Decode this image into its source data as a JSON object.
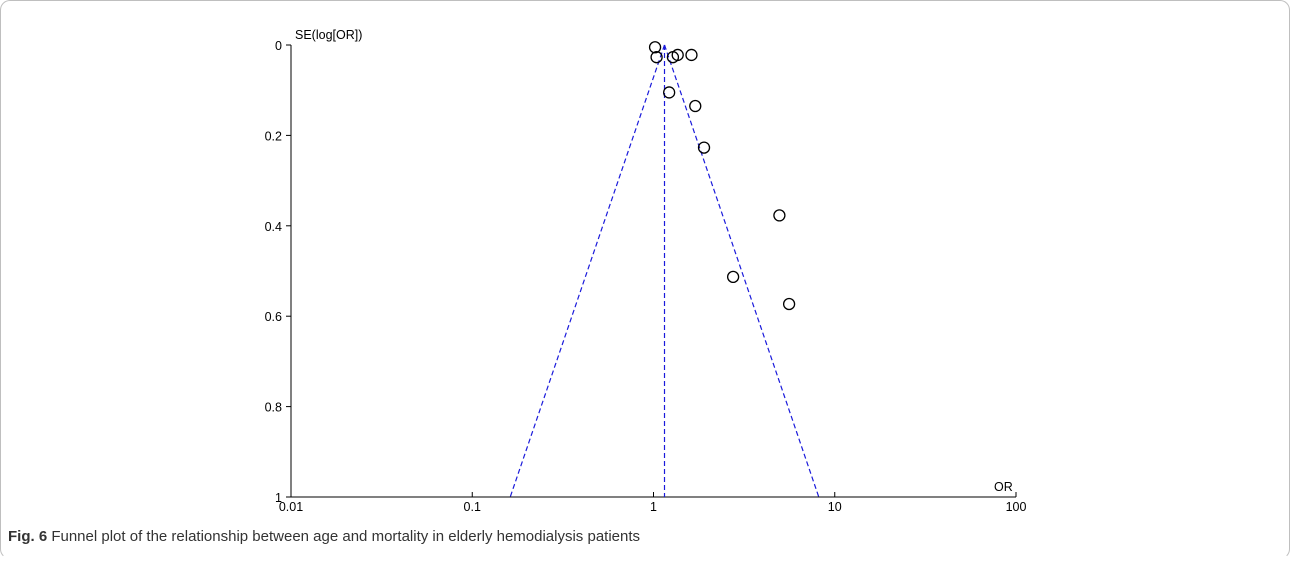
{
  "chart_data": {
    "type": "scatter",
    "subtype": "funnel-plot",
    "xlabel": "OR",
    "ylabel": "SE(log[OR])",
    "x_scale": "log",
    "xlim": [
      0.01,
      100
    ],
    "ylim": [
      0,
      1
    ],
    "y_inverted": true,
    "grid": false,
    "x_ticks": [
      "0.01",
      "0.1",
      "1",
      "10",
      "100"
    ],
    "y_ticks": [
      "0",
      "0.2",
      "0.4",
      "0.6",
      "0.8",
      "1"
    ],
    "pooled_or": 1.15,
    "funnel_color": "#1a1adb",
    "point_style": "open-circle",
    "series": [
      {
        "points": [
          {
            "or": 1.02,
            "se": 0.005
          },
          {
            "or": 1.04,
            "se": 0.027
          },
          {
            "or": 1.28,
            "se": 0.027
          },
          {
            "or": 1.36,
            "se": 0.022
          },
          {
            "or": 1.62,
            "se": 0.022
          },
          {
            "or": 1.22,
            "se": 0.105
          },
          {
            "or": 1.7,
            "se": 0.135
          },
          {
            "or": 1.9,
            "se": 0.227
          },
          {
            "or": 4.95,
            "se": 0.377
          },
          {
            "or": 2.75,
            "se": 0.513
          },
          {
            "or": 5.6,
            "se": 0.573
          }
        ]
      }
    ]
  },
  "caption": {
    "label": "Fig. 6",
    "text": " Funnel plot of the relationship between age and mortality in elderly hemodialysis patients"
  }
}
